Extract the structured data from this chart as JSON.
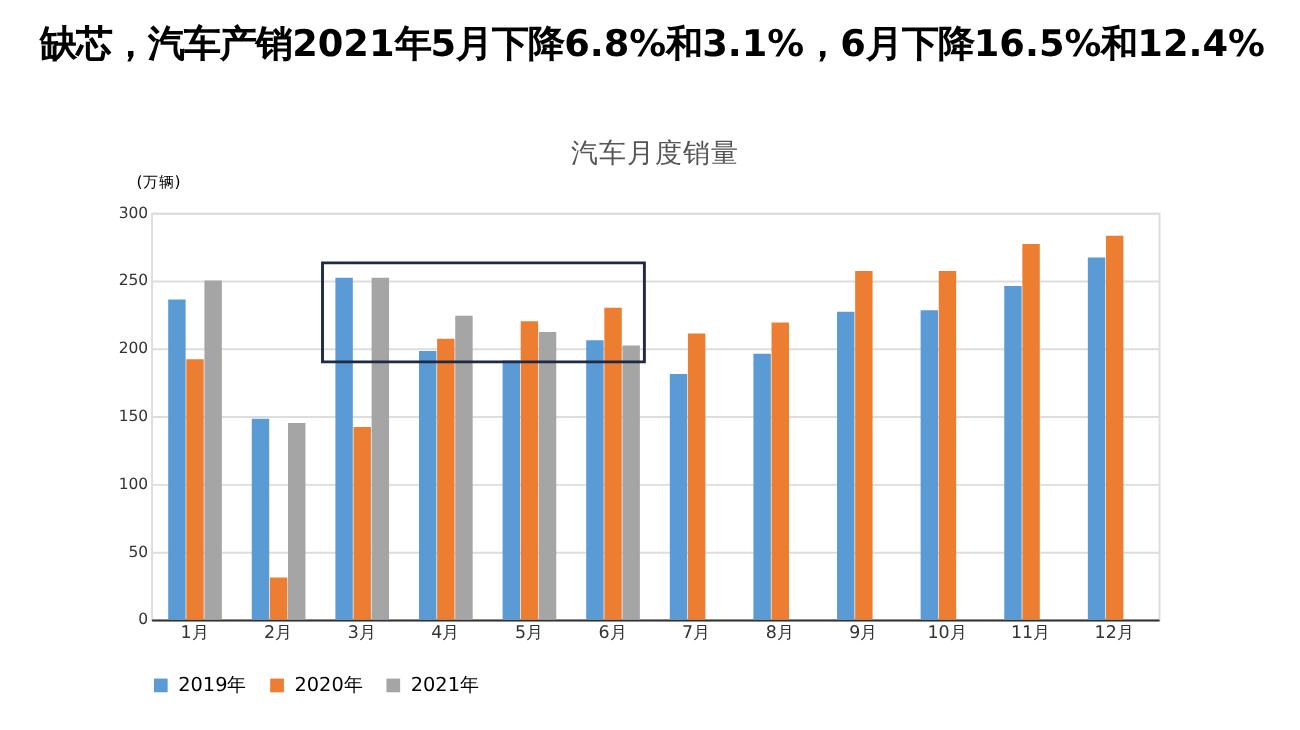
{
  "chart_data": {
    "type": "bar",
    "title": "缺芯，汽车产销2021年5月下降6.8%和3.1%，6月下降16.5%和12.4%",
    "subtitle": "汽车月度销量",
    "ylabel": "(万辆)",
    "categories": [
      "1月",
      "2月",
      "3月",
      "4月",
      "5月",
      "6月",
      "7月",
      "8月",
      "9月",
      "10月",
      "11月",
      "12月"
    ],
    "series": [
      {
        "name": "2019年",
        "color": "#5b9bd5",
        "values": [
          236,
          148,
          252,
          198,
          191,
          206,
          181,
          196,
          227,
          228,
          246,
          267
        ]
      },
      {
        "name": "2020年",
        "color": "#ed7d31",
        "values": [
          192,
          31,
          142,
          207,
          220,
          230,
          211,
          219,
          257,
          257,
          277,
          283
        ]
      },
      {
        "name": "2021年",
        "color": "#a5a5a5",
        "values": [
          250,
          145,
          252,
          224,
          212,
          202,
          null,
          null,
          null,
          null,
          null,
          null
        ]
      }
    ],
    "ylim": [
      0,
      300
    ],
    "yticks": [
      0,
      50,
      100,
      150,
      200,
      250,
      300
    ],
    "grid": "y",
    "legend": "bottom"
  }
}
